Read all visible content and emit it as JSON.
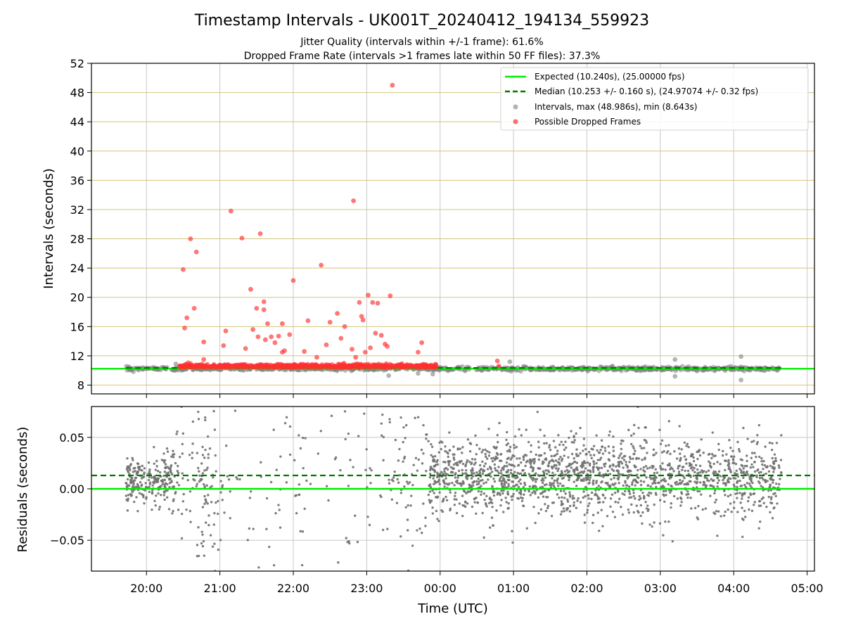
{
  "chart_data": [
    {
      "type": "scatter",
      "title": "Timestamp Intervals - UK001T_20240412_194134_559923",
      "subtitle_lines": [
        "Jitter Quality (intervals within +/-1 frame): 61.6%",
        "Dropped Frame Rate (intervals >1 frames late within 50 FF files): 37.3%"
      ],
      "xlabel": "",
      "ylabel": "Intervals (seconds)",
      "xlim_hours": [
        19.25,
        29.1
      ],
      "ylim": [
        6.8,
        52
      ],
      "yticks": [
        8,
        12,
        16,
        20,
        24,
        28,
        32,
        36,
        40,
        44,
        48,
        52
      ],
      "grid": "on",
      "legend_placement": "top-right",
      "legend": [
        "Expected (10.240s), (25.00000 fps)",
        "Median (10.253 +/- 0.160 s), (24.97074 +/- 0.32 fps)",
        "Intervals, max (48.986s), min (8.643s)",
        "Possible Dropped Frames"
      ],
      "series": [
        {
          "name": "Expected (10.240s), (25.00000 fps)",
          "kind": "hline",
          "y": 10.24,
          "color": "#00ee00"
        },
        {
          "name": "Median (10.253 +/- 0.160 s), (24.97074 +/- 0.32 fps)",
          "kind": "hline-dashed",
          "y": 10.253,
          "color": "#007a00"
        },
        {
          "name": "Intervals, max (48.986s), min (8.643s)",
          "kind": "scatter",
          "color": "#808080",
          "band": {
            "x_start": 19.72,
            "x_end": 28.63,
            "y": 10.24
          },
          "x": [
            19.8,
            20.4,
            20.45,
            21.0,
            21.9,
            22.3,
            22.6,
            23.3,
            23.7,
            23.9,
            24.1,
            24.95,
            25.4,
            26.35,
            27.2,
            27.2,
            28.1,
            28.1
          ],
          "y": [
            10.2,
            10.9,
            10.6,
            10.5,
            10.3,
            10.4,
            10.2,
            9.3,
            9.6,
            9.5,
            10.1,
            11.2,
            10.4,
            10.6,
            11.5,
            9.2,
            11.9,
            8.7
          ]
        },
        {
          "name": "Possible Dropped Frames",
          "kind": "scatter",
          "color": "#ff3030",
          "band": {
            "x_start": 20.45,
            "x_end": 23.95,
            "y": 10.6
          },
          "x": [
            20.5,
            20.52,
            20.55,
            20.6,
            20.65,
            20.68,
            20.78,
            20.78,
            21.05,
            21.08,
            21.15,
            21.3,
            21.35,
            21.42,
            21.45,
            21.5,
            21.52,
            21.55,
            21.6,
            21.6,
            21.62,
            21.65,
            21.7,
            21.75,
            21.8,
            21.85,
            21.85,
            21.88,
            21.95,
            22.0,
            22.15,
            22.2,
            22.32,
            22.38,
            22.45,
            22.5,
            22.6,
            22.65,
            22.7,
            22.8,
            22.82,
            22.85,
            22.9,
            22.93,
            22.95,
            22.98,
            23.02,
            23.05,
            23.08,
            23.12,
            23.15,
            23.2,
            23.25,
            23.28,
            23.32,
            23.35,
            23.55,
            23.7,
            23.75,
            24.78,
            24.8
          ],
          "y": [
            23.8,
            15.8,
            17.2,
            28.0,
            18.5,
            26.2,
            13.9,
            11.5,
            13.4,
            15.4,
            31.8,
            28.1,
            13.0,
            21.1,
            15.6,
            18.5,
            14.6,
            28.7,
            18.3,
            19.4,
            14.2,
            16.4,
            14.6,
            13.8,
            14.7,
            16.4,
            12.5,
            12.7,
            14.9,
            22.3,
            12.6,
            16.8,
            11.8,
            24.4,
            13.5,
            16.6,
            17.8,
            14.4,
            16.0,
            12.9,
            33.2,
            11.8,
            19.3,
            17.4,
            16.9,
            12.5,
            20.3,
            13.1,
            19.3,
            15.1,
            19.2,
            14.8,
            13.6,
            13.3,
            20.2,
            49.0,
            10.8,
            12.5,
            13.8,
            11.3,
            10.6
          ]
        }
      ]
    },
    {
      "type": "scatter",
      "title": "",
      "xlabel": "Time (UTC)",
      "ylabel": "Residuals (seconds)",
      "xlim_hours": [
        19.25,
        29.1
      ],
      "ylim": [
        -0.08,
        0.08
      ],
      "yticks": [
        0.05,
        0.0,
        -0.05
      ],
      "ytick_labels": [
        "0.05",
        "0.00",
        "−0.05"
      ],
      "xticks_hours": [
        20,
        21,
        22,
        23,
        24,
        25,
        26,
        27,
        28,
        29
      ],
      "xtick_labels": [
        "20:00",
        "21:00",
        "22:00",
        "23:00",
        "00:00",
        "01:00",
        "02:00",
        "03:00",
        "04:00",
        "05:00"
      ],
      "grid": "on",
      "series": [
        {
          "name": "",
          "kind": "hline",
          "y": 0.0,
          "color": "#00ee00"
        },
        {
          "name": "",
          "kind": "hline-dashed",
          "y": 0.013,
          "color": "#007a00"
        },
        {
          "name": "",
          "kind": "scatter",
          "color": "#707070",
          "clusters": [
            {
              "x_start": 19.72,
              "x_end": 20.35,
              "mean": 0.008,
              "sd": 0.012,
              "n": 220
            },
            {
              "x_start": 20.35,
              "x_end": 20.6,
              "mean": 0.01,
              "sd": 0.028,
              "n": 40
            },
            {
              "x_start": 20.6,
              "x_end": 20.95,
              "mean": 0.0,
              "sd": 0.045,
              "n": 80
            },
            {
              "x_start": 20.95,
              "x_end": 21.9,
              "mean": 0.0,
              "sd": 0.05,
              "n": 45
            },
            {
              "x_start": 21.9,
              "x_end": 22.8,
              "mean": 0.0,
              "sd": 0.05,
              "n": 45
            },
            {
              "x_start": 22.8,
              "x_end": 23.4,
              "mean": 0.0,
              "sd": 0.05,
              "n": 40
            },
            {
              "x_start": 23.4,
              "x_end": 23.85,
              "mean": 0.005,
              "sd": 0.04,
              "n": 55
            },
            {
              "x_start": 23.85,
              "x_end": 28.65,
              "mean": 0.012,
              "sd": 0.019,
              "n": 1700
            }
          ]
        }
      ]
    }
  ]
}
